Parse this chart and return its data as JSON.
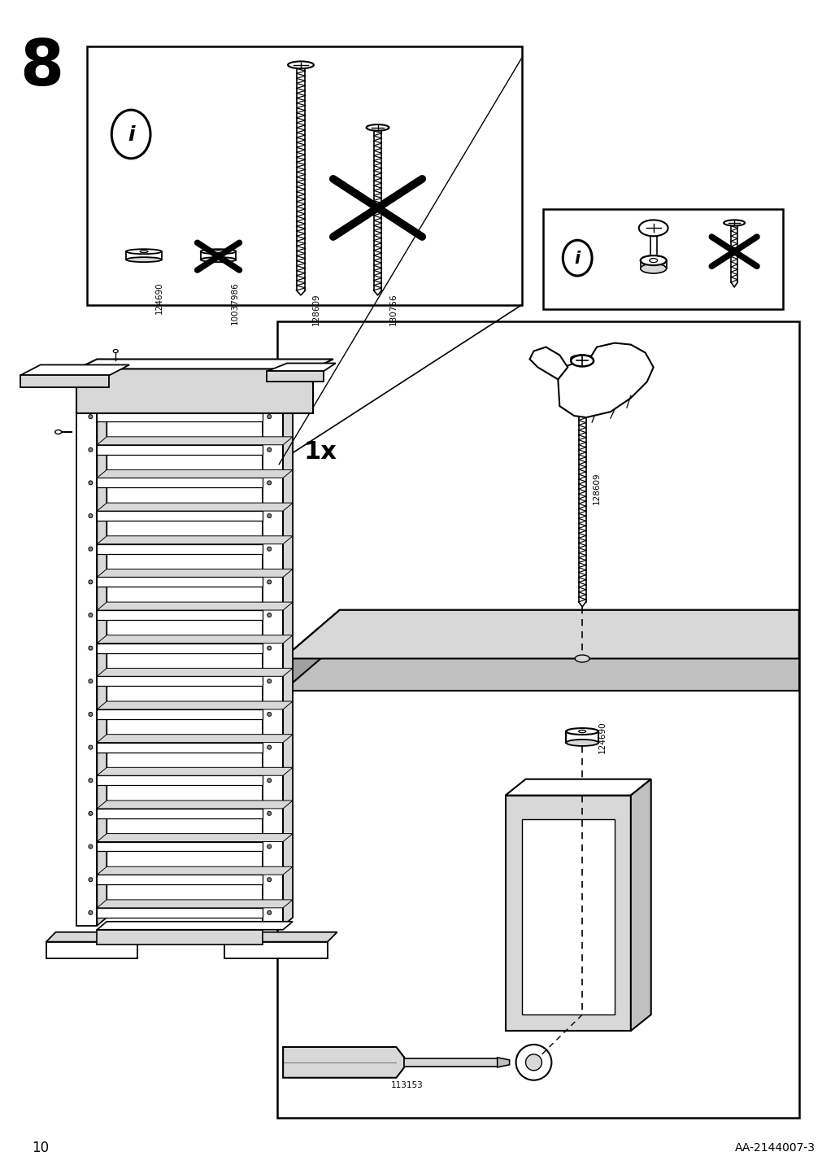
{
  "page_number": "10",
  "doc_id": "AA-2144007-3",
  "step_number": "8",
  "bg_color": "#ffffff",
  "gray_light": "#d8d8d8",
  "gray_mid": "#c0c0c0",
  "gray_dark": "#a0a0a0",
  "part_ids": [
    "124690",
    "10037986",
    "128609",
    "130756"
  ],
  "quantity": "1x"
}
